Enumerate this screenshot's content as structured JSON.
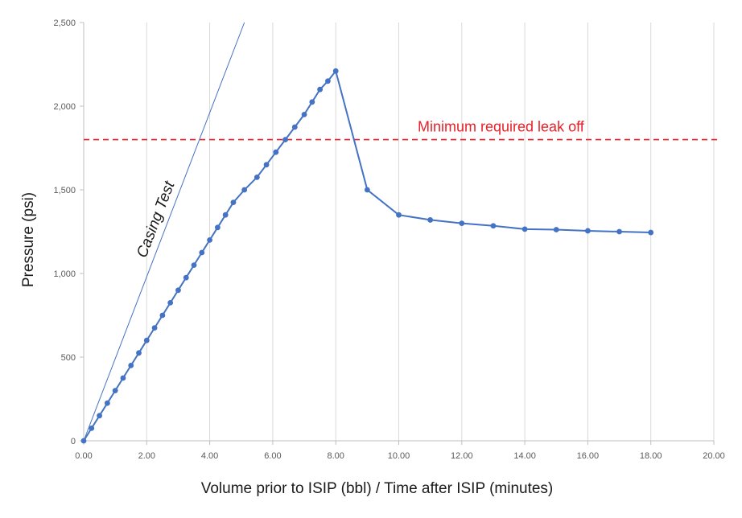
{
  "chart_data": {
    "type": "line",
    "title": "",
    "xlabel": "Volume prior to ISIP (bbl) / Time after ISIP (minutes)",
    "ylabel": "Pressure (psi)",
    "xlim": [
      0,
      20
    ],
    "ylim": [
      0,
      2500
    ],
    "x_ticks": [
      0,
      2,
      4,
      6,
      8,
      10,
      12,
      14,
      16,
      18,
      20
    ],
    "x_tick_labels": [
      "0.00",
      "2.00",
      "4.00",
      "6.00",
      "8.00",
      "10.00",
      "12.00",
      "14.00",
      "16.00",
      "18.00",
      "20.00"
    ],
    "y_ticks": [
      0,
      500,
      1000,
      1500,
      2000,
      2500
    ],
    "y_tick_labels": [
      "0",
      "500",
      "1,000",
      "1,500",
      "2,000",
      "2,500"
    ],
    "grid": "vertical",
    "series": [
      {
        "color": "#4472c4",
        "marker": "circle",
        "x": [
          0,
          0.25,
          0.5,
          0.75,
          1.0,
          1.25,
          1.5,
          1.75,
          2.0,
          2.25,
          2.5,
          2.75,
          3.0,
          3.25,
          3.5,
          3.75,
          4.0,
          4.25,
          4.5,
          4.75,
          5.1,
          5.5,
          5.8,
          6.1,
          6.4,
          6.7,
          7.0,
          7.25,
          7.5,
          7.75,
          8.0,
          9.0,
          10.0,
          11.0,
          12.0,
          13.0,
          14.0,
          15.0,
          16.0,
          17.0,
          18.0
        ],
        "y": [
          0,
          75,
          150,
          225,
          300,
          375,
          450,
          525,
          600,
          675,
          750,
          825,
          900,
          975,
          1050,
          1125,
          1200,
          1275,
          1350,
          1425,
          1500,
          1575,
          1650,
          1725,
          1800,
          1875,
          1950,
          2025,
          2100,
          2150,
          2210,
          1500,
          1350,
          1320,
          1300,
          1285,
          1265,
          1262,
          1255,
          1250,
          1245
        ]
      }
    ],
    "reference_lines": [
      {
        "label": "Minimum required leak off",
        "y": 1800,
        "style": "dashed",
        "color": "#e8202a"
      },
      {
        "label": "Casing Test",
        "x_start": 0,
        "y_start": 0,
        "x_end": 5.1,
        "y_end": 2500,
        "style": "solid-thin",
        "color": "#4472c4"
      }
    ]
  }
}
